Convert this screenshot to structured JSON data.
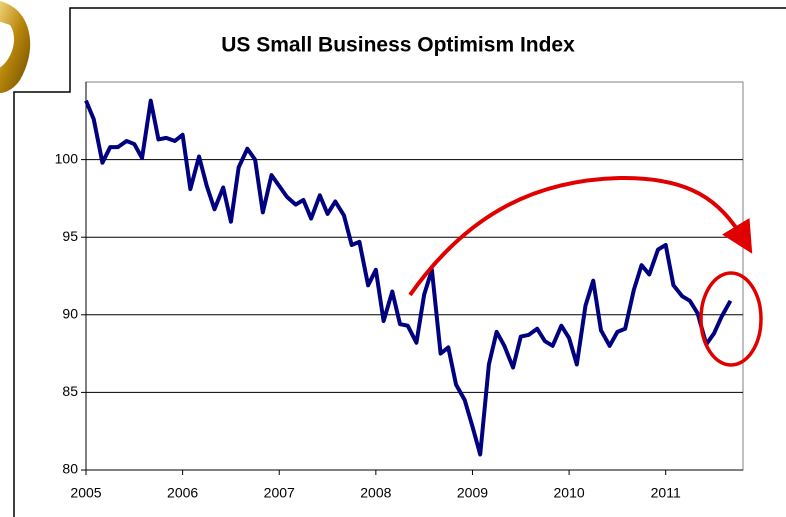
{
  "chart_data": {
    "type": "line",
    "title": "US Small Business Optimism Index",
    "x": [
      2005.0,
      2005.08,
      2005.17,
      2005.25,
      2005.33,
      2005.42,
      2005.5,
      2005.58,
      2005.67,
      2005.75,
      2005.83,
      2005.92,
      2006.0,
      2006.08,
      2006.17,
      2006.25,
      2006.33,
      2006.42,
      2006.5,
      2006.58,
      2006.67,
      2006.75,
      2006.83,
      2006.92,
      2007.0,
      2007.08,
      2007.17,
      2007.25,
      2007.33,
      2007.42,
      2007.5,
      2007.58,
      2007.67,
      2007.75,
      2007.83,
      2007.92,
      2008.0,
      2008.08,
      2008.17,
      2008.25,
      2008.33,
      2008.42,
      2008.5,
      2008.58,
      2008.67,
      2008.75,
      2008.83,
      2008.92,
      2009.0,
      2009.08,
      2009.17,
      2009.25,
      2009.33,
      2009.42,
      2009.5,
      2009.58,
      2009.67,
      2009.75,
      2009.83,
      2009.92,
      2010.0,
      2010.08,
      2010.17,
      2010.25,
      2010.33,
      2010.42,
      2010.5,
      2010.58,
      2010.67,
      2010.75,
      2010.83,
      2010.92,
      2011.0,
      2011.08,
      2011.17,
      2011.25,
      2011.33,
      2011.42,
      2011.5,
      2011.58,
      2011.67
    ],
    "series": [
      {
        "color": "#000080",
        "values": [
          103.8,
          102.6,
          99.8,
          100.8,
          100.8,
          101.2,
          101.0,
          100.1,
          103.8,
          101.3,
          101.4,
          101.2,
          101.6,
          98.1,
          100.2,
          98.3,
          96.8,
          98.2,
          96.0,
          99.5,
          100.7,
          100.0,
          96.6,
          99.0,
          98.3,
          97.6,
          97.1,
          97.4,
          96.2,
          97.7,
          96.5,
          97.3,
          96.4,
          94.5,
          94.7,
          91.9,
          92.9,
          89.6,
          91.5,
          89.4,
          89.3,
          88.2,
          91.3,
          92.9,
          87.5,
          87.9,
          85.5,
          84.5,
          82.8,
          81.0,
          86.8,
          88.9,
          88.0,
          86.6,
          88.6,
          88.7,
          89.1,
          88.3,
          88.0,
          89.3,
          88.5,
          86.8,
          90.6,
          92.2,
          89.0,
          88.0,
          88.9,
          89.1,
          91.6,
          93.2,
          92.6,
          94.2,
          94.5,
          91.9,
          91.2,
          90.9,
          90.1,
          88.1,
          88.8,
          89.9,
          90.9
        ]
      }
    ],
    "xlim": [
      2005,
      2011.8
    ],
    "xticks": [
      2005,
      2006,
      2007,
      2008,
      2009,
      2010,
      2011
    ],
    "ylim": [
      80,
      105
    ],
    "yticks": [
      80,
      85,
      90,
      95,
      100
    ],
    "grid": true
  }
}
